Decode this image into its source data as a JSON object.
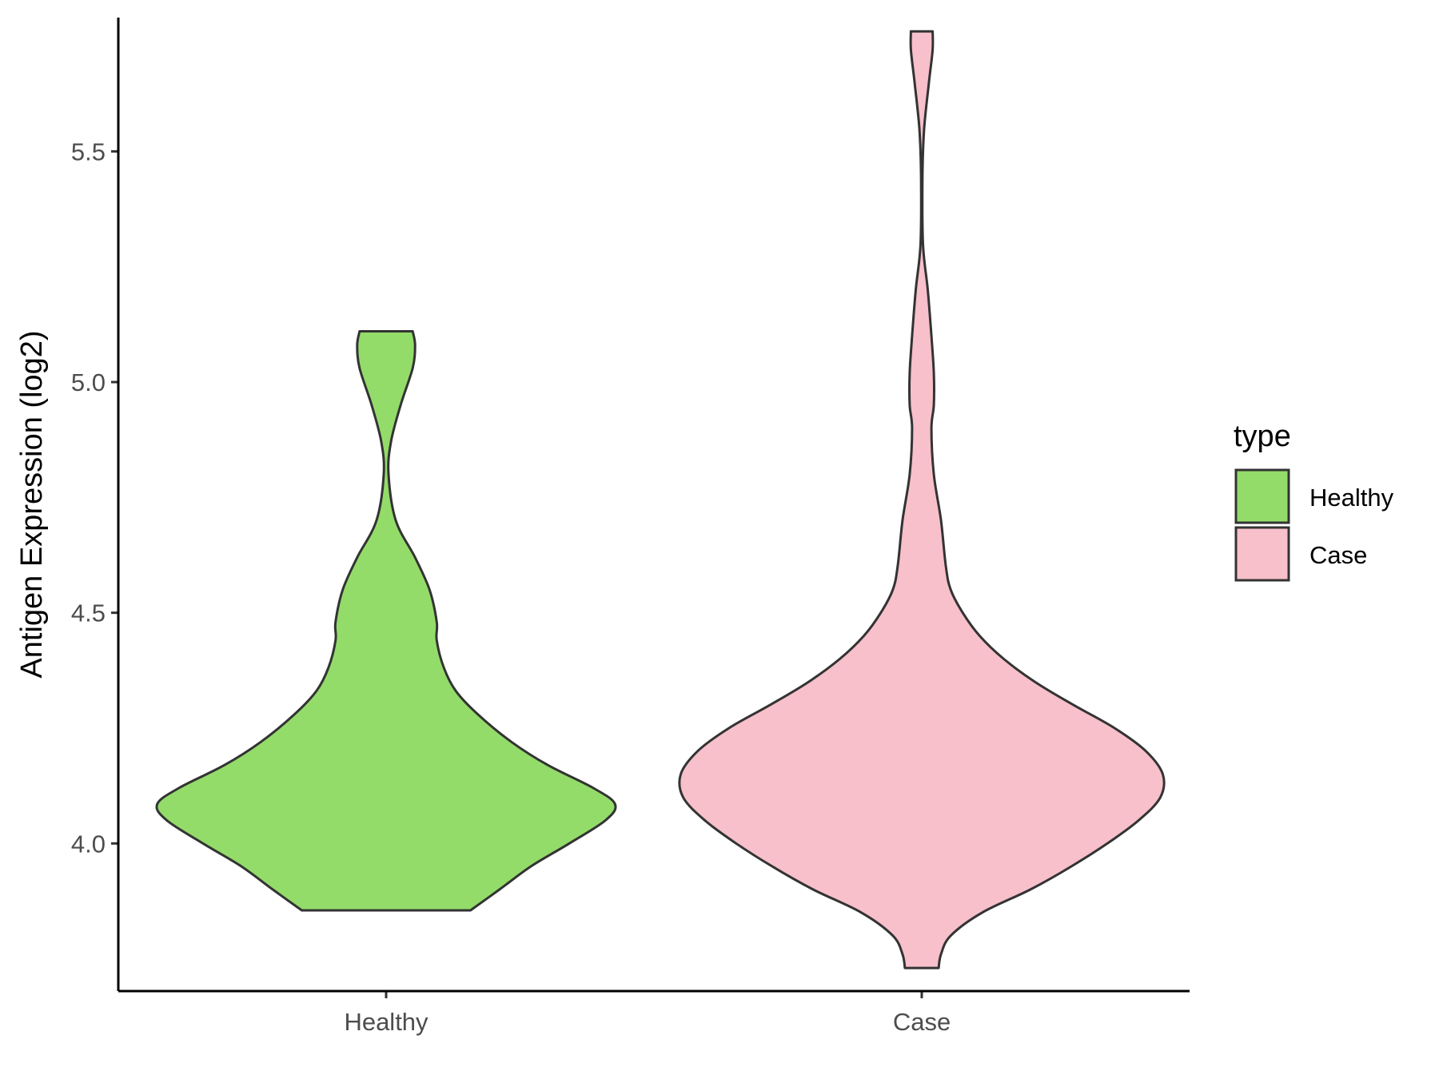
{
  "chart_data": {
    "type": "violin",
    "title": "",
    "xlabel": "",
    "ylabel": "Antigen Expression (log2)",
    "ylim": [
      3.68,
      5.79
    ],
    "yticks": [
      "4.0",
      "4.5",
      "5.0",
      "5.5"
    ],
    "grid": false,
    "categories": [
      "Healthy",
      "Case"
    ],
    "legend": {
      "title": "type",
      "position": "right",
      "entries": [
        {
          "label": "Healthy",
          "color": "#93dc6a"
        },
        {
          "label": "Case",
          "color": "#f7c0cb"
        }
      ]
    },
    "series": [
      {
        "name": "Healthy",
        "color": "#93dc6a",
        "min": 3.855,
        "max": 5.11,
        "density_profile": [
          [
            3.855,
            0.35
          ],
          [
            3.9,
            0.47
          ],
          [
            3.95,
            0.6
          ],
          [
            4.0,
            0.76
          ],
          [
            4.05,
            0.91
          ],
          [
            4.085,
            0.95
          ],
          [
            4.12,
            0.86
          ],
          [
            4.17,
            0.67
          ],
          [
            4.22,
            0.52
          ],
          [
            4.28,
            0.38
          ],
          [
            4.33,
            0.29
          ],
          [
            4.38,
            0.24
          ],
          [
            4.44,
            0.21
          ],
          [
            4.48,
            0.21
          ],
          [
            4.55,
            0.18
          ],
          [
            4.62,
            0.12
          ],
          [
            4.7,
            0.04
          ],
          [
            4.8,
            0.01
          ],
          [
            4.87,
            0.02
          ],
          [
            4.95,
            0.06
          ],
          [
            5.03,
            0.11
          ],
          [
            5.08,
            0.12
          ],
          [
            5.11,
            0.11
          ]
        ]
      },
      {
        "name": "Case",
        "color": "#f7c0cb",
        "min": 3.73,
        "max": 5.76,
        "density_profile": [
          [
            3.73,
            0.07
          ],
          [
            3.76,
            0.08
          ],
          [
            3.8,
            0.12
          ],
          [
            3.85,
            0.25
          ],
          [
            3.9,
            0.45
          ],
          [
            3.95,
            0.62
          ],
          [
            4.0,
            0.77
          ],
          [
            4.05,
            0.9
          ],
          [
            4.1,
            0.99
          ],
          [
            4.15,
            1.0
          ],
          [
            4.2,
            0.93
          ],
          [
            4.25,
            0.8
          ],
          [
            4.3,
            0.63
          ],
          [
            4.35,
            0.47
          ],
          [
            4.4,
            0.34
          ],
          [
            4.45,
            0.24
          ],
          [
            4.5,
            0.17
          ],
          [
            4.55,
            0.12
          ],
          [
            4.6,
            0.1
          ],
          [
            4.7,
            0.08
          ],
          [
            4.8,
            0.05
          ],
          [
            4.9,
            0.04
          ],
          [
            4.95,
            0.05
          ],
          [
            5.02,
            0.05
          ],
          [
            5.1,
            0.04
          ],
          [
            5.2,
            0.025
          ],
          [
            5.3,
            0.005
          ],
          [
            5.45,
            0.003
          ],
          [
            5.55,
            0.01
          ],
          [
            5.65,
            0.03
          ],
          [
            5.72,
            0.045
          ],
          [
            5.76,
            0.045
          ]
        ]
      }
    ]
  }
}
